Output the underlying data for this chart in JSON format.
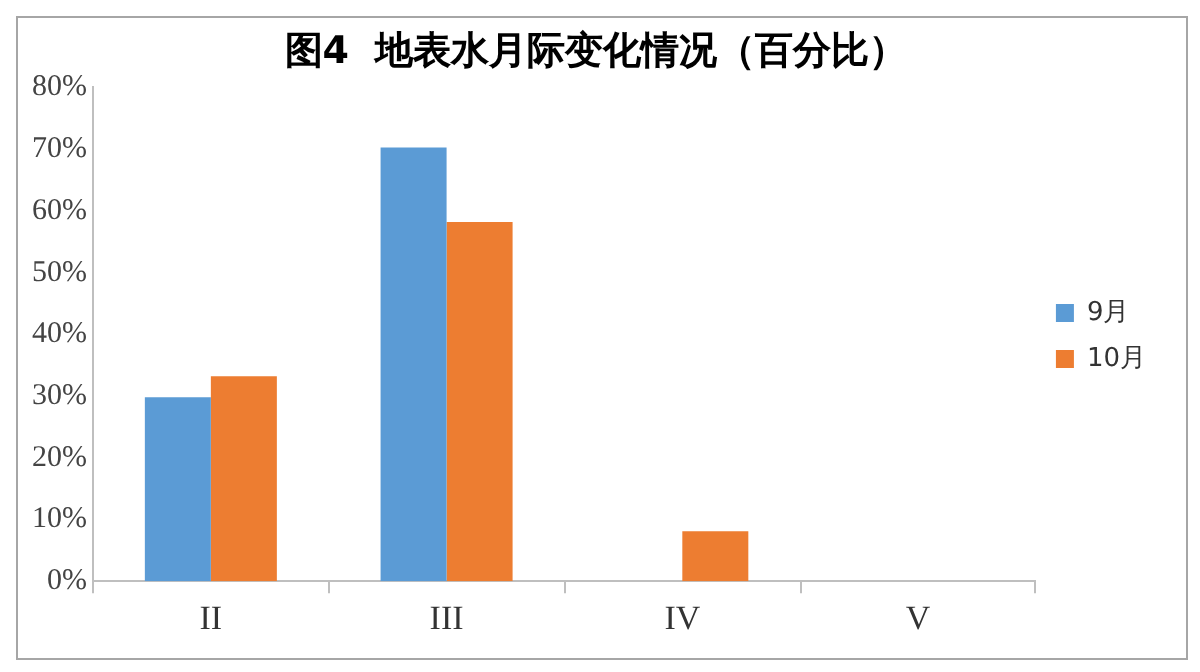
{
  "chart_data": {
    "type": "bar",
    "title": "图4  地表水月际变化情况（百分比）",
    "categories": [
      "II",
      "III",
      "IV",
      "V"
    ],
    "series": [
      {
        "name": "9月",
        "color": "#5b9bd5",
        "values": [
          29.8,
          70.3,
          0,
          0
        ]
      },
      {
        "name": "10月",
        "color": "#ed7d31",
        "values": [
          33.2,
          58.2,
          8.1,
          0
        ]
      }
    ],
    "ylim": [
      0,
      80
    ],
    "yticks": [
      {
        "value": 0,
        "label": "0%"
      },
      {
        "value": 10,
        "label": "10%"
      },
      {
        "value": 20,
        "label": "20%"
      },
      {
        "value": 30,
        "label": "30%"
      },
      {
        "value": 40,
        "label": "40%"
      },
      {
        "value": 50,
        "label": "50%"
      },
      {
        "value": 60,
        "label": "60%"
      },
      {
        "value": 70,
        "label": "70%"
      },
      {
        "value": 80,
        "label": "80%"
      }
    ],
    "grid": false,
    "legend": "right"
  }
}
